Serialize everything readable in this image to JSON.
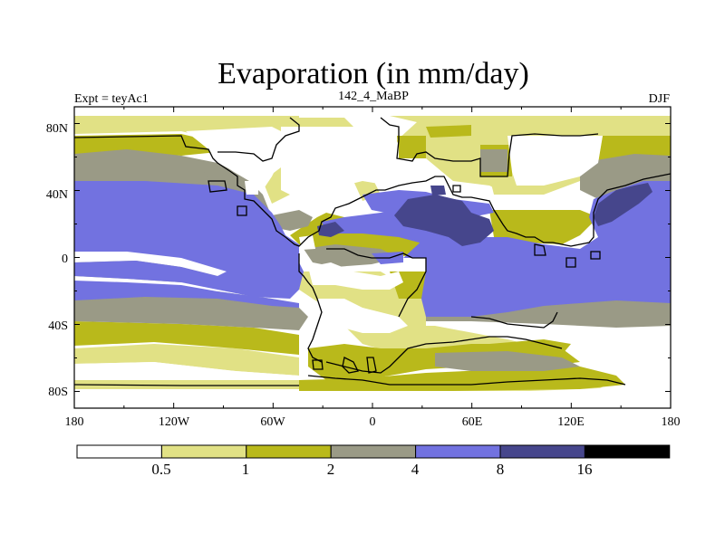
{
  "title": "Evaporation (in mm/day)",
  "left_label": "Expt = teyAc1",
  "center_label": "142_4_MaBP",
  "right_label": "DJF",
  "lon_ticks": [
    "180",
    "120W",
    "60W",
    "0",
    "60E",
    "120E",
    "180"
  ],
  "lat_ticks": [
    "80N",
    "40N",
    "0",
    "40S",
    "80S"
  ],
  "colorbar": {
    "labels": [
      "0.5",
      "1",
      "2",
      "4",
      "8",
      "16"
    ],
    "colors": [
      "#ffffff",
      "#e1e185",
      "#b9b91b",
      "#9a9a86",
      "#7272e0",
      "#46468c",
      "#000000"
    ]
  },
  "colors": {
    "land": "#ffffff",
    "level_0_5": "#e1e185",
    "level_1": "#b9b91b",
    "level_2": "#9a9a86",
    "level_4": "#7272e0",
    "level_8": "#46468c",
    "level_16": "#000000"
  }
}
